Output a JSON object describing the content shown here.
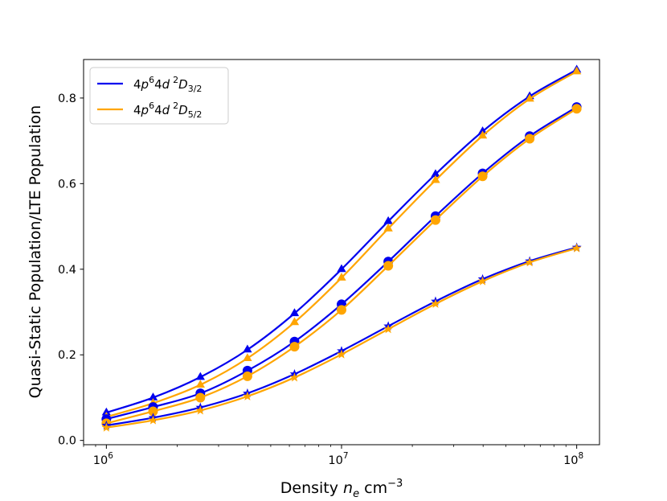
{
  "chart_data": {
    "type": "line",
    "title": "",
    "xlabel": "Density n_e cm^-3",
    "ylabel": "Quasi-Static Population/LTE Population",
    "xscale": "log",
    "xlim": [
      800000,
      125000000
    ],
    "ylim": [
      -0.01,
      0.89
    ],
    "x": [
      1000000,
      1580000,
      2510000,
      3980000,
      6310000,
      10000000,
      15800000,
      25100000,
      39800000,
      63100000,
      100000000
    ],
    "xticks": [
      {
        "value": 1000000,
        "base": "10",
        "exp": "6"
      },
      {
        "value": 10000000,
        "base": "10",
        "exp": "7"
      },
      {
        "value": 100000000,
        "base": "10",
        "exp": "8"
      }
    ],
    "yticks": [
      {
        "value": 0.0,
        "label": "0.0"
      },
      {
        "value": 0.2,
        "label": "0.2"
      },
      {
        "value": 0.4,
        "label": "0.4"
      },
      {
        "value": 0.6,
        "label": "0.6"
      },
      {
        "value": 0.8,
        "label": "0.8"
      }
    ],
    "legend": {
      "location": "upper-left",
      "entries": [
        {
          "level": "D3/2",
          "color": "#0000ee",
          "parts": [
            "4",
            "p",
            "6",
            "4",
            "d",
            "2",
            "D",
            "3/2"
          ]
        },
        {
          "level": "D5/2",
          "color": "#ffa500",
          "parts": [
            "4",
            "p",
            "6",
            "4",
            "d",
            "2",
            "D",
            "5/2"
          ]
        }
      ]
    },
    "series": [
      {
        "name": "D3/2 triangle",
        "color": "#0000ee",
        "marker": "triangle",
        "values": [
          0.065,
          0.1,
          0.148,
          0.212,
          0.297,
          0.4,
          0.512,
          0.622,
          0.722,
          0.804,
          0.866
        ]
      },
      {
        "name": "D5/2 triangle",
        "color": "#ffa500",
        "marker": "triangle",
        "values": [
          0.055,
          0.087,
          0.13,
          0.192,
          0.276,
          0.38,
          0.495,
          0.608,
          0.712,
          0.798,
          0.862
        ]
      },
      {
        "name": "D3/2 circle",
        "color": "#0000ee",
        "marker": "circle",
        "values": [
          0.05,
          0.078,
          0.11,
          0.163,
          0.231,
          0.318,
          0.418,
          0.524,
          0.624,
          0.711,
          0.779
        ]
      },
      {
        "name": "D5/2 circle",
        "color": "#ffa500",
        "marker": "circle",
        "values": [
          0.04,
          0.068,
          0.1,
          0.15,
          0.219,
          0.305,
          0.408,
          0.515,
          0.617,
          0.705,
          0.775
        ]
      },
      {
        "name": "D3/2 star",
        "color": "#0000ee",
        "marker": "star",
        "values": [
          0.035,
          0.053,
          0.077,
          0.11,
          0.155,
          0.209,
          0.267,
          0.325,
          0.377,
          0.419,
          0.451
        ]
      },
      {
        "name": "D5/2 star",
        "color": "#ffa500",
        "marker": "star",
        "values": [
          0.03,
          0.047,
          0.07,
          0.103,
          0.147,
          0.201,
          0.26,
          0.319,
          0.372,
          0.416,
          0.449
        ]
      }
    ]
  }
}
